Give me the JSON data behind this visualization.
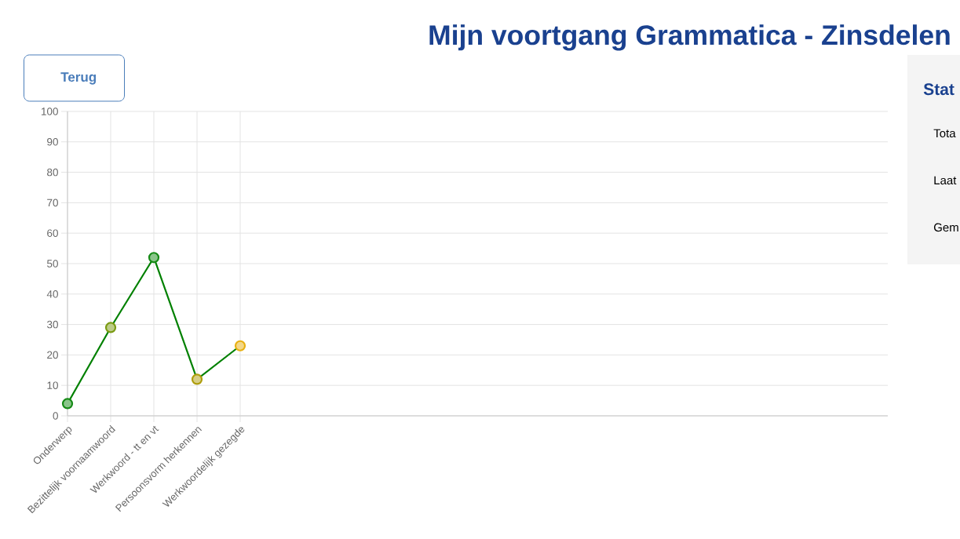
{
  "chart_data": {
    "type": "line",
    "title": "Mijn voortgang Grammatica - Zinsdelen",
    "annotations": [
      "Terug",
      "Stat",
      "Tota",
      "Laat",
      "Gem"
    ],
    "categories": [
      "Onderwerp",
      "Bezittelijk voornaamwoord",
      "Werkwoord - tt en vt",
      "Persoonsvorm herkennen",
      "Werkwoordelijk gezegde"
    ],
    "values": [
      4,
      29,
      52,
      12,
      23
    ],
    "color": "#008000",
    "colors": [
      "#158a15",
      "#7a9a12",
      "#158a15",
      "#ae9d0c",
      "#e8b012"
    ],
    "marker": "circle",
    "line_style": "solid",
    "ylim": [
      0,
      100
    ],
    "yticks": [
      0,
      10,
      20,
      30,
      40,
      50,
      60,
      70,
      80,
      90,
      100
    ],
    "grid": true
  }
}
